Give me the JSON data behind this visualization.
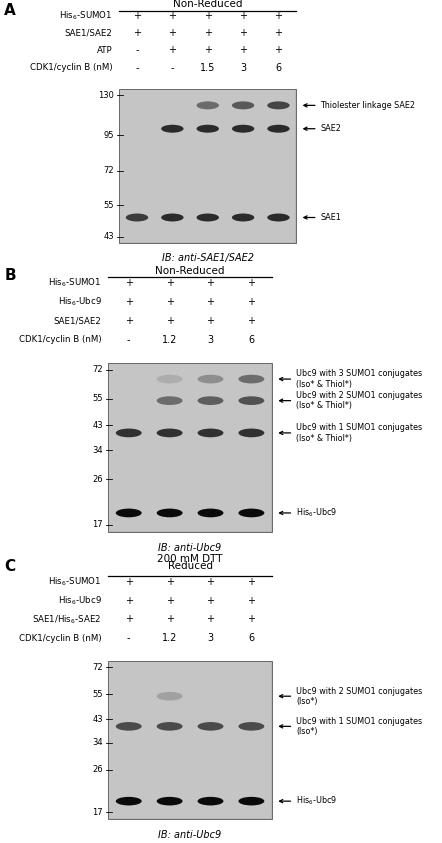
{
  "panel_A": {
    "label": "A",
    "title": "Non-Reduced",
    "conditions_labels": [
      "His$_6$-SUMO1",
      "SAE1/SAE2",
      "ATP",
      "CDK1/cyclin B (nM)"
    ],
    "conditions_values": [
      [
        "+",
        "+",
        "+",
        "+",
        "+"
      ],
      [
        "+",
        "+",
        "+",
        "+",
        "+"
      ],
      [
        "-",
        "+",
        "+",
        "+",
        "+"
      ],
      [
        "-",
        "-",
        "1.5",
        "3",
        "6"
      ]
    ],
    "mw_markers": [
      130,
      95,
      72,
      55,
      43
    ],
    "bands": [
      {
        "mw": 100,
        "alphas": [
          0.0,
          0.78,
          0.78,
          0.78,
          0.78
        ]
      },
      {
        "mw": 120,
        "alphas": [
          0.0,
          0.0,
          0.45,
          0.55,
          0.65
        ]
      },
      {
        "mw": 50,
        "alphas": [
          0.7,
          0.78,
          0.78,
          0.78,
          0.78
        ]
      }
    ],
    "annotations": [
      {
        "label": "Thiolester linkage SAE2",
        "mw": 120
      },
      {
        "label": "SAE2",
        "mw": 100
      },
      {
        "label": "SAE1",
        "mw": 50
      }
    ],
    "ib_label": "IB: anti-SAE1/SAE2",
    "n_lanes": 5
  },
  "panel_B": {
    "label": "B",
    "title": "Non-Reduced",
    "conditions_labels": [
      "His$_6$-SUMO1",
      "His$_6$-Ubc9",
      "SAE1/SAE2",
      "CDK1/cyclin B (nM)"
    ],
    "conditions_values": [
      [
        "+",
        "+",
        "+",
        "+"
      ],
      [
        "+",
        "+",
        "+",
        "+"
      ],
      [
        "+",
        "+",
        "+",
        "+"
      ],
      [
        "-",
        "1.2",
        "3",
        "6"
      ]
    ],
    "mw_markers": [
      72,
      55,
      43,
      34,
      26,
      17
    ],
    "bands": [
      {
        "mw": 19,
        "alphas": [
          0.95,
          0.95,
          0.95,
          0.95
        ]
      },
      {
        "mw": 40,
        "alphas": [
          0.75,
          0.75,
          0.75,
          0.75
        ]
      },
      {
        "mw": 54,
        "alphas": [
          0.0,
          0.45,
          0.52,
          0.58
        ]
      },
      {
        "mw": 66,
        "alphas": [
          0.0,
          0.12,
          0.28,
          0.45
        ]
      }
    ],
    "annotations": [
      {
        "label": "Ubc9 with 3 SUMO1 conjugates\n(Iso* & Thiol*)",
        "mw": 66
      },
      {
        "label": "Ubc9 with 2 SUMO1 conjugates\n(Iso* & Thiol*)",
        "mw": 54
      },
      {
        "label": "Ubc9 with 1 SUMO1 conjugates\n(Iso* & Thiol*)",
        "mw": 40
      },
      {
        "label": "His$_6$-Ubc9",
        "mw": 19
      }
    ],
    "ib_label": "IB: anti-Ubc9",
    "n_lanes": 4
  },
  "panel_C": {
    "label": "C",
    "title": "200 mM DTT\nReduced",
    "conditions_labels": [
      "His$_6$-SUMO1",
      "His$_6$-Ubc9",
      "SAE1/His$_6$-SAE2",
      "CDK1/cyclin B (nM)"
    ],
    "conditions_values": [
      [
        "+",
        "+",
        "+",
        "+"
      ],
      [
        "+",
        "+",
        "+",
        "+"
      ],
      [
        "+",
        "+",
        "+",
        "+"
      ],
      [
        "-",
        "1.2",
        "3",
        "6"
      ]
    ],
    "mw_markers": [
      72,
      55,
      43,
      34,
      26,
      17
    ],
    "bands": [
      {
        "mw": 19,
        "alphas": [
          0.95,
          0.95,
          0.95,
          0.95
        ]
      },
      {
        "mw": 40,
        "alphas": [
          0.62,
          0.62,
          0.62,
          0.62
        ]
      },
      {
        "mw": 54,
        "alphas": [
          0.0,
          0.18,
          0.0,
          0.0
        ]
      }
    ],
    "annotations": [
      {
        "label": "Ubc9 with 2 SUMO1 conjugates\n(Iso*)",
        "mw": 54
      },
      {
        "label": "Ubc9 with 1 SUMO1 conjugates\n(Iso*)",
        "mw": 40
      },
      {
        "label": "His$_6$-Ubc9",
        "mw": 19
      }
    ],
    "ib_label": "IB: anti-Ubc9",
    "n_lanes": 4
  }
}
